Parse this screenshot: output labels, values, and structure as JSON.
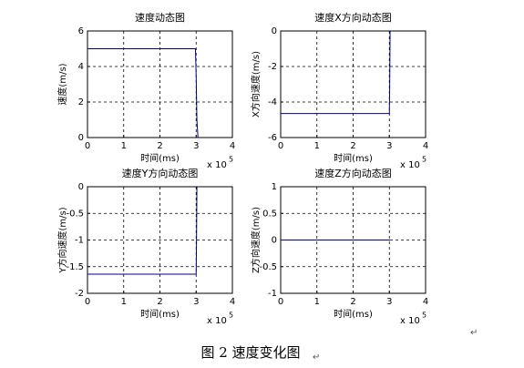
{
  "chart_data": [
    {
      "type": "line",
      "title": "速度动态图",
      "xlabel": "时间(ms)",
      "ylabel": "速度(m/s)",
      "x_scale_label": "x 10",
      "x_scale_exponent": "5",
      "x": [
        0,
        2.98,
        3.0,
        3.02,
        3.05
      ],
      "values": [
        5,
        5,
        3.5,
        1,
        0
      ],
      "color": "#00008b",
      "xlim": [
        0,
        4
      ],
      "xticks": [
        0,
        1,
        2,
        3,
        4
      ],
      "ylim": [
        0,
        6
      ],
      "yticks": [
        0,
        2,
        4,
        6
      ],
      "grid": true
    },
    {
      "type": "line",
      "title": "速度X方向动态图",
      "xlabel": "时间(ms)",
      "ylabel": "X方向速度(m/s)",
      "x_scale_label": "x 10",
      "x_scale_exponent": "5",
      "x": [
        0,
        3.0,
        3.01,
        3.02
      ],
      "values": [
        -4.65,
        -4.65,
        -3,
        0
      ],
      "color": "#00008b",
      "xlim": [
        0,
        4
      ],
      "xticks": [
        0,
        1,
        2,
        3,
        4
      ],
      "ylim": [
        -6,
        0
      ],
      "yticks": [
        -6,
        -4,
        -2,
        0
      ],
      "grid": true
    },
    {
      "type": "line",
      "title": "速度Y方向动态图",
      "xlabel": "时间(ms)",
      "ylabel": "Y方向速度(m/s)",
      "x_scale_label": "x 10",
      "x_scale_exponent": "5",
      "x": [
        0,
        3.0,
        3.01,
        3.02
      ],
      "values": [
        -1.64,
        -1.64,
        -1,
        0
      ],
      "color": "#00008b",
      "xlim": [
        0,
        4
      ],
      "xticks": [
        0,
        1,
        2,
        3,
        4
      ],
      "ylim": [
        -2,
        0
      ],
      "yticks": [
        -2,
        -1.5,
        -1,
        -0.5,
        0
      ],
      "grid": true
    },
    {
      "type": "line",
      "title": "速度Z方向动态图",
      "xlabel": "时间(ms)",
      "ylabel": "Z方向速度(m/s)",
      "x_scale_label": "x 10",
      "x_scale_exponent": "5",
      "x": [
        0,
        3.02
      ],
      "values": [
        0,
        0
      ],
      "color": "#00008b",
      "xlim": [
        0,
        4
      ],
      "xticks": [
        0,
        1,
        2,
        3,
        4
      ],
      "ylim": [
        -1,
        1
      ],
      "yticks": [
        -1,
        -0.5,
        0,
        0.5,
        1
      ],
      "grid": true
    }
  ],
  "caption": "图 2  速度变化图",
  "paragraph_mark": "↵"
}
